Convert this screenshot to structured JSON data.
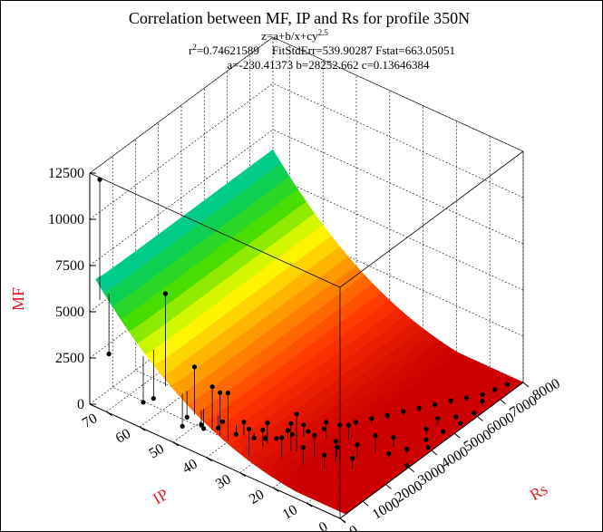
{
  "chart_data": {
    "type": "surface3d",
    "title": "Correlation between MF, IP and Rs for profile 350N",
    "equation_base": "z=a+b/x+cy",
    "equation_exp": "2.5",
    "stats_r": "r",
    "stats_r_exp": "2",
    "stats_r_value": "=0.74621589",
    "stats_rest": "FitStdErr=539.90287    Fstat=663.05051",
    "params_line": "a=-230.41373  b=28252.662  c=0.13646384",
    "params": {
      "a": -230.41373,
      "b": 28252.662,
      "c": 0.13646384
    },
    "zlabel": "MF",
    "xlabel": "IP",
    "ylabel": "Rs",
    "z_ticks": [
      "0",
      "2500",
      "5000",
      "7500",
      "10000",
      "12500"
    ],
    "ip_ticks": [
      "0",
      "10",
      "20",
      "30",
      "40",
      "50",
      "60",
      "70"
    ],
    "rs_ticks": [
      "0",
      "1000",
      "2000",
      "3000",
      "4000",
      "5000",
      "6000",
      "7000",
      "8000"
    ],
    "zlim": [
      0,
      12500
    ],
    "ip_lim": [
      0,
      75
    ],
    "rs_lim": [
      0,
      8000
    ],
    "colormap": [
      "#cc0000",
      "#ff3300",
      "#ff9900",
      "#ffff00",
      "#44dd00",
      "#00cc66",
      "#00ccee",
      "#0077ff"
    ],
    "points": [
      [
        72,
        0,
        12400
      ],
      [
        53,
        100,
        7700
      ],
      [
        72,
        400,
        2600
      ],
      [
        60,
        150,
        1200
      ],
      [
        45,
        200,
        4300
      ],
      [
        40,
        250,
        3600
      ],
      [
        38,
        300,
        3400
      ],
      [
        36,
        350,
        3500
      ],
      [
        30,
        400,
        2000
      ],
      [
        24,
        1600,
        2200
      ],
      [
        60,
        600,
        1000
      ],
      [
        50,
        600,
        800
      ],
      [
        45,
        500,
        900
      ],
      [
        40,
        700,
        1300
      ],
      [
        35,
        900,
        1500
      ],
      [
        30,
        1000,
        1400
      ],
      [
        30,
        1200,
        1600
      ],
      [
        25,
        1100,
        1300
      ],
      [
        25,
        1500,
        1700
      ],
      [
        20,
        1800,
        1200
      ],
      [
        20,
        1300,
        1000
      ],
      [
        15,
        2000,
        1100
      ],
      [
        15,
        1500,
        800
      ],
      [
        12,
        2500,
        700
      ],
      [
        10,
        3000,
        900
      ],
      [
        10,
        2000,
        600
      ],
      [
        28,
        1800,
        800
      ],
      [
        26,
        2200,
        900
      ],
      [
        22,
        2600,
        1000
      ],
      [
        18,
        3000,
        800
      ],
      [
        16,
        2200,
        500
      ],
      [
        8,
        3500,
        500
      ],
      [
        5,
        4500,
        300
      ],
      [
        5,
        5000,
        400
      ],
      [
        3,
        5500,
        200
      ],
      [
        2,
        6500,
        200
      ],
      [
        50,
        400,
        500
      ],
      [
        45,
        600,
        600
      ],
      [
        42,
        800,
        700
      ],
      [
        38,
        1000,
        500
      ],
      [
        34,
        1200,
        450
      ],
      [
        32,
        1400,
        400
      ],
      [
        30,
        1600,
        380
      ],
      [
        28,
        2000,
        400
      ],
      [
        26,
        2400,
        350
      ],
      [
        24,
        2800,
        300
      ],
      [
        22,
        3200,
        300
      ],
      [
        20,
        3600,
        250
      ],
      [
        18,
        4000,
        250
      ],
      [
        16,
        4400,
        200
      ],
      [
        14,
        4800,
        220
      ],
      [
        12,
        5200,
        200
      ],
      [
        10,
        5600,
        180
      ],
      [
        8,
        6000,
        200
      ],
      [
        6,
        6400,
        150
      ],
      [
        4,
        6800,
        120
      ],
      [
        3,
        7200,
        100
      ],
      [
        2,
        7600,
        100
      ],
      [
        6,
        3000,
        250
      ],
      [
        4,
        3500,
        200
      ],
      [
        3,
        4200,
        150
      ],
      [
        2,
        4800,
        120
      ],
      [
        1,
        5400,
        100
      ],
      [
        1,
        6000,
        90
      ],
      [
        1,
        4000,
        80
      ],
      [
        0.5,
        3000,
        60
      ]
    ]
  }
}
